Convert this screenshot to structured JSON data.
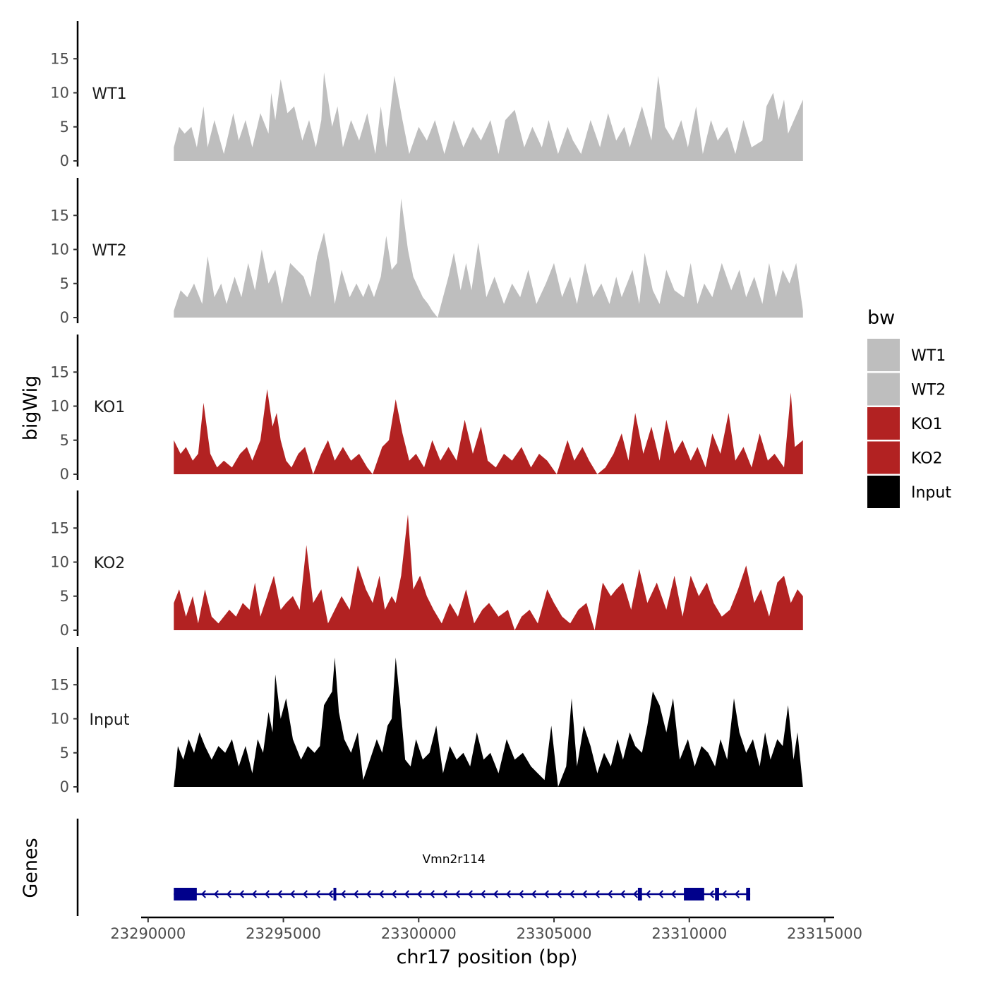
{
  "chart_data": {
    "type": "area",
    "xlabel": "chr17 position (bp)",
    "ylabel": "bigWig",
    "gene_panel_label": "Genes",
    "chromosome": "chr17",
    "xlim": [
      23289900,
      23315300
    ],
    "x_ticks": [
      23290000,
      23295000,
      23300000,
      23305000,
      23310000,
      23315000
    ],
    "x_tick_labels": [
      "23290000",
      "23295000",
      "23300000",
      "23305000",
      "23310000",
      "23315000"
    ],
    "ylim": [
      0,
      20
    ],
    "y_ticks": [
      0,
      5,
      10,
      15
    ],
    "y_tick_labels": [
      "0",
      "5",
      "10",
      "15"
    ],
    "legend": {
      "title": "bw",
      "position": "right",
      "entries": [
        {
          "label": "WT1",
          "color": "#bebebe"
        },
        {
          "label": "WT2",
          "color": "#bebebe"
        },
        {
          "label": "KO1",
          "color": "#b22222"
        },
        {
          "label": "KO2",
          "color": "#b22222"
        },
        {
          "label": "Input",
          "color": "#000000"
        }
      ]
    },
    "series": [
      {
        "name": "WT1",
        "color": "#bebebe",
        "x": [
          23290950,
          23291150,
          23291350,
          23291600,
          23291800,
          23292050,
          23292200,
          23292450,
          23292800,
          23293150,
          23293350,
          23293600,
          23293850,
          23294150,
          23294450,
          23294550,
          23294700,
          23294900,
          23295150,
          23295400,
          23295700,
          23295950,
          23296200,
          23296400,
          23296500,
          23296800,
          23297000,
          23297200,
          23297500,
          23297800,
          23298100,
          23298400,
          23298600,
          23298800,
          23299100,
          23299400,
          23299650,
          23300000,
          23300300,
          23300600,
          23300950,
          23301300,
          23301650,
          23302000,
          23302300,
          23302650,
          23302950,
          23303200,
          23303550,
          23303900,
          23304200,
          23304550,
          23304800,
          23305150,
          23305500,
          23305700,
          23306000,
          23306350,
          23306700,
          23307000,
          23307300,
          23307600,
          23307800,
          23308100,
          23308250,
          23308600,
          23308850,
          23309100,
          23309400,
          23309700,
          23309950,
          23310250,
          23310500,
          23310800,
          23311050,
          23311400,
          23311700,
          23312000,
          23312300,
          23312700,
          23312850,
          23313100,
          23313300,
          23313500,
          23313650,
          23314200
        ],
        "values": [
          2,
          5,
          4,
          5,
          2,
          8,
          2,
          6,
          1,
          7,
          3,
          6,
          2,
          7,
          4,
          10,
          6,
          12,
          7,
          8,
          3,
          6,
          2,
          6,
          13,
          5,
          8,
          2,
          6,
          3,
          7,
          1,
          8,
          2,
          12.5,
          6,
          1,
          5,
          3,
          6,
          1,
          6,
          2,
          5,
          3,
          6,
          1,
          6,
          7.5,
          2,
          5,
          2,
          6,
          1,
          5,
          3,
          1,
          6,
          2,
          7,
          3,
          5,
          2,
          6,
          8,
          3,
          12.5,
          5,
          3,
          6,
          2,
          8,
          1,
          6,
          3,
          5,
          1,
          6,
          2,
          3,
          8,
          10,
          6,
          9,
          4,
          9
        ]
      },
      {
        "name": "WT2",
        "color": "#bebebe",
        "x": [
          23290950,
          23291200,
          23291450,
          23291700,
          23292000,
          23292200,
          23292450,
          23292700,
          23292900,
          23293200,
          23293450,
          23293700,
          23293950,
          23294200,
          23294450,
          23294700,
          23294950,
          23295250,
          23295500,
          23295750,
          23296000,
          23296250,
          23296500,
          23296700,
          23296900,
          23297150,
          23297450,
          23297700,
          23297950,
          23298150,
          23298350,
          23298600,
          23298800,
          23299000,
          23299200,
          23299350,
          23299600,
          23299800,
          23300150,
          23300350,
          23300500,
          23300700,
          23300900,
          23301100,
          23301300,
          23301550,
          23301750,
          23301950,
          23302200,
          23302500,
          23302800,
          23303150,
          23303450,
          23303750,
          23304050,
          23304350,
          23304700,
          23305000,
          23305300,
          23305600,
          23305850,
          23306150,
          23306450,
          23306750,
          23307050,
          23307300,
          23307500,
          23307900,
          23308150,
          23308350,
          23308650,
          23308900,
          23309150,
          23309450,
          23309800,
          23310050,
          23310300,
          23310550,
          23310850,
          23311200,
          23311550,
          23311850,
          23312100,
          23312400,
          23312700,
          23312950,
          23313200,
          23313450,
          23313700,
          23313950,
          23314200
        ],
        "values": [
          1,
          4,
          3,
          5,
          2,
          9,
          3,
          5,
          2,
          6,
          3,
          8,
          4,
          10,
          5,
          7,
          2,
          8,
          7,
          6,
          3,
          9,
          12.5,
          8,
          2,
          7,
          3,
          5,
          3,
          5,
          3,
          6,
          12,
          7,
          8,
          17.5,
          10,
          6,
          3,
          2,
          1,
          0,
          3,
          6,
          9.5,
          4,
          8,
          4,
          11,
          3,
          6,
          2,
          5,
          3,
          7,
          2,
          5,
          8,
          3,
          6,
          2,
          8,
          3,
          5,
          2,
          6,
          3,
          7,
          2,
          9.5,
          4,
          2,
          7,
          4,
          3,
          8,
          2,
          5,
          3,
          8,
          4,
          7,
          3,
          6,
          2,
          8,
          3,
          7,
          5,
          8,
          1
        ]
      },
      {
        "name": "KO1",
        "color": "#b22222",
        "x": [
          23290950,
          23291200,
          23291400,
          23291650,
          23291850,
          23292050,
          23292300,
          23292550,
          23292800,
          23293100,
          23293400,
          23293650,
          23293850,
          23294150,
          23294400,
          23294600,
          23294750,
          23294900,
          23295100,
          23295300,
          23295550,
          23295800,
          23296100,
          23296400,
          23296650,
          23296900,
          23297200,
          23297500,
          23297800,
          23298100,
          23298300,
          23298650,
          23298900,
          23299150,
          23299400,
          23299650,
          23299900,
          23300200,
          23300500,
          23300800,
          23301100,
          23301400,
          23301700,
          23302000,
          23302300,
          23302550,
          23302850,
          23303150,
          23303450,
          23303800,
          23304150,
          23304450,
          23304750,
          23305100,
          23305500,
          23305750,
          23306050,
          23306300,
          23306600,
          23306900,
          23307200,
          23307500,
          23307750,
          23308000,
          23308300,
          23308600,
          23308900,
          23309150,
          23309450,
          23309750,
          23310050,
          23310300,
          23310600,
          23310850,
          23311150,
          23311450,
          23311700,
          23312000,
          23312300,
          23312600,
          23312900,
          23313150,
          23313500,
          23313750,
          23313900,
          23314200
        ],
        "values": [
          5,
          3,
          4,
          2,
          3,
          10.5,
          3,
          1,
          2,
          1,
          3,
          4,
          2,
          5,
          12.5,
          7,
          9,
          5,
          2,
          1,
          3,
          4,
          0,
          3,
          5,
          2,
          4,
          2,
          3,
          1,
          0,
          4,
          5,
          11,
          6,
          2,
          3,
          1,
          5,
          2,
          4,
          2,
          8,
          3,
          7,
          2,
          1,
          3,
          2,
          4,
          1,
          3,
          2,
          0,
          5,
          2,
          4,
          2,
          0,
          1,
          3,
          6,
          2,
          9,
          3,
          7,
          2,
          8,
          3,
          5,
          2,
          4,
          1,
          6,
          3,
          9,
          2,
          4,
          1,
          6,
          2,
          3,
          1,
          12,
          4,
          5
        ]
      },
      {
        "name": "KO2",
        "color": "#b22222",
        "x": [
          23290950,
          23291150,
          23291400,
          23291650,
          23291850,
          23292100,
          23292350,
          23292600,
          23292800,
          23293000,
          23293250,
          23293500,
          23293750,
          23293950,
          23294150,
          23294400,
          23294650,
          23294900,
          23295100,
          23295350,
          23295600,
          23295850,
          23296100,
          23296400,
          23296650,
          23296900,
          23297150,
          23297450,
          23297750,
          23298050,
          23298300,
          23298550,
          23298750,
          23299000,
          23299150,
          23299350,
          23299600,
          23299800,
          23300050,
          23300300,
          23300550,
          23300850,
          23301150,
          23301450,
          23301750,
          23302050,
          23302350,
          23302600,
          23302950,
          23303300,
          23303550,
          23303800,
          23304100,
          23304400,
          23304750,
          23305000,
          23305300,
          23305600,
          23305900,
          23306200,
          23306500,
          23306800,
          23307100,
          23307300,
          23307550,
          23307850,
          23308150,
          23308450,
          23308800,
          23309150,
          23309450,
          23309750,
          23310050,
          23310350,
          23310650,
          23310900,
          23311200,
          23311500,
          23311800,
          23312100,
          23312400,
          23312650,
          23312950,
          23313250,
          23313500,
          23313750,
          23314000,
          23314200
        ],
        "values": [
          4,
          6,
          2,
          5,
          1,
          6,
          2,
          1,
          2,
          3,
          2,
          4,
          3,
          7,
          2,
          5,
          8,
          3,
          4,
          5,
          3,
          12.5,
          4,
          6,
          1,
          3,
          5,
          3,
          9.5,
          6,
          4,
          8,
          3,
          5,
          4,
          8,
          17,
          6,
          8,
          5,
          3,
          1,
          4,
          2,
          6,
          1,
          3,
          4,
          2,
          3,
          0,
          2,
          3,
          1,
          6,
          4,
          2,
          1,
          3,
          4,
          0,
          7,
          5,
          6,
          7,
          3,
          9,
          4,
          7,
          3,
          8,
          2,
          8,
          5,
          7,
          4,
          2,
          3,
          6,
          9.5,
          4,
          6,
          2,
          7,
          8,
          4,
          6,
          5
        ]
      },
      {
        "name": "Input",
        "color": "#000000",
        "x": [
          23290950,
          23291100,
          23291300,
          23291500,
          23291700,
          23291900,
          23292100,
          23292350,
          23292600,
          23292850,
          23293100,
          23293350,
          23293600,
          23293850,
          23294050,
          23294250,
          23294450,
          23294600,
          23294700,
          23294900,
          23295100,
          23295350,
          23295650,
          23295900,
          23296150,
          23296350,
          23296500,
          23296650,
          23296800,
          23296900,
          23297050,
          23297250,
          23297500,
          23297750,
          23297950,
          23298200,
          23298450,
          23298650,
          23298850,
          23299000,
          23299150,
          23299300,
          23299500,
          23299700,
          23299900,
          23300150,
          23300400,
          23300650,
          23300900,
          23301150,
          23301400,
          23301650,
          23301900,
          23302150,
          23302400,
          23302650,
          23302950,
          23303250,
          23303550,
          23303850,
          23304150,
          23304400,
          23304650,
          23304900,
          23305150,
          23305450,
          23305650,
          23305850,
          23306100,
          23306350,
          23306600,
          23306850,
          23307100,
          23307350,
          23307550,
          23307800,
          23308000,
          23308250,
          23308450,
          23308650,
          23308900,
          23309150,
          23309400,
          23309650,
          23309950,
          23310200,
          23310450,
          23310700,
          23310950,
          23311150,
          23311400,
          23311650,
          23311850,
          23312100,
          23312350,
          23312600,
          23312800,
          23313000,
          23313250,
          23313450,
          23313650,
          23313850,
          23314000,
          23314200
        ],
        "values": [
          0,
          6,
          4,
          7,
          5,
          8,
          6,
          4,
          6,
          5,
          7,
          3,
          6,
          2,
          7,
          5,
          11,
          8,
          16.5,
          10,
          13,
          7,
          4,
          6,
          5,
          6,
          12,
          13,
          14,
          19,
          11,
          7,
          5,
          8,
          1,
          4,
          7,
          5,
          9,
          10,
          19,
          13,
          4,
          3,
          7,
          4,
          5,
          9,
          2,
          6,
          4,
          5,
          3,
          8,
          4,
          5,
          2,
          7,
          4,
          5,
          3,
          2,
          1,
          9,
          0,
          3,
          13,
          3,
          9,
          6,
          2,
          5,
          3,
          7,
          4,
          8,
          6,
          5,
          9,
          14,
          12,
          8,
          13,
          4,
          7,
          3,
          6,
          5,
          3,
          7,
          4,
          13,
          8,
          5,
          7,
          3,
          8,
          4,
          7,
          6,
          12,
          4,
          8,
          0
        ]
      }
    ],
    "genes": [
      {
        "name": "Vmn2r114",
        "start": 23290950,
        "end": 23312250,
        "strand": "-",
        "exons": [
          [
            23290950,
            23291800
          ],
          [
            23296850,
            23296950
          ],
          [
            23308100,
            23308250
          ],
          [
            23309800,
            23310550
          ],
          [
            23310950,
            23311100
          ],
          [
            23312100,
            23312250
          ]
        ]
      }
    ]
  }
}
